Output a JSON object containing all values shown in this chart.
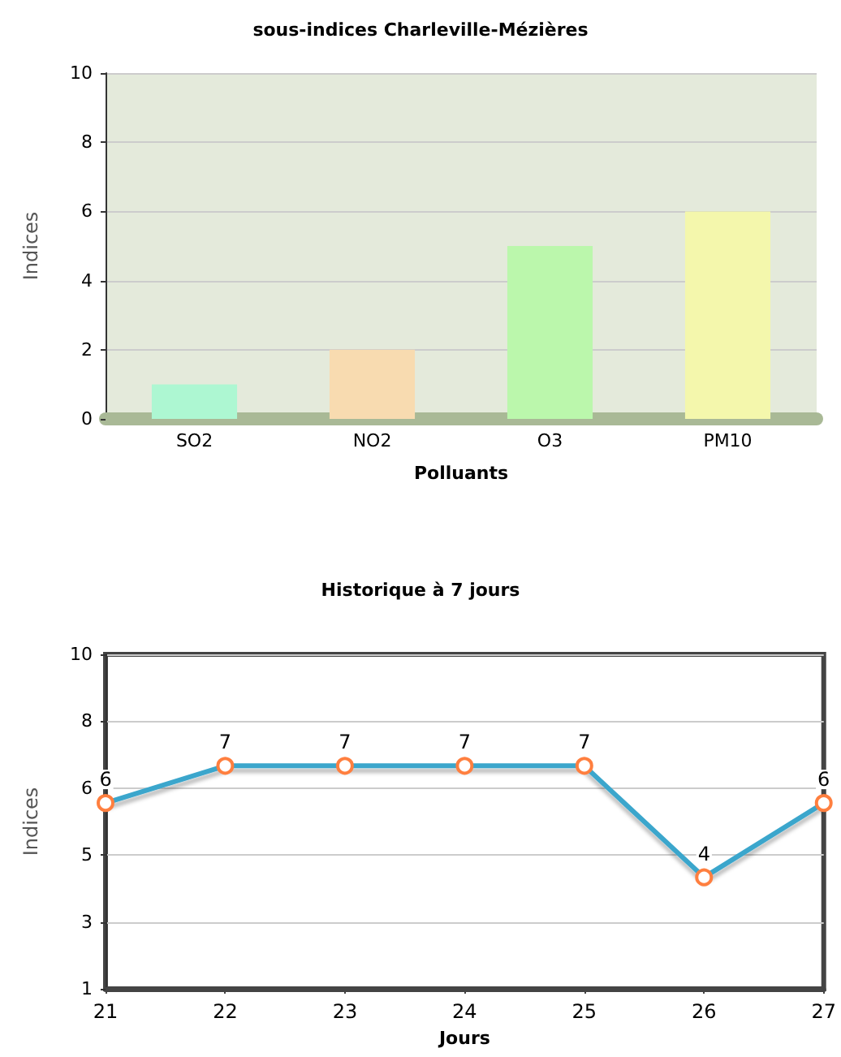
{
  "chart_data": [
    {
      "type": "bar",
      "title": "sous-indices Charleville-Mézières",
      "xlabel": "Polluants",
      "ylabel": "Indices",
      "categories": [
        "SO2",
        "NO2",
        "O3",
        "PM10"
      ],
      "values": [
        1,
        2,
        5,
        6
      ],
      "colors": [
        "#adf7d2",
        "#f8dbb0",
        "#bbf7ac",
        "#f4f7ac"
      ],
      "ylim": [
        0,
        10
      ],
      "yticks": [
        0,
        2,
        4,
        6,
        8,
        10
      ],
      "grid": "y"
    },
    {
      "type": "line",
      "title": "Historique à 7 jours",
      "xlabel": "Jours",
      "ylabel": "Indices",
      "x": [
        21,
        22,
        23,
        24,
        25,
        26,
        27
      ],
      "series": [
        {
          "color": "#3aa6cc",
          "values": [
            6,
            7,
            7,
            7,
            7,
            4,
            6
          ]
        }
      ],
      "xlim": [
        21,
        27
      ],
      "xticks": [
        21,
        22,
        23,
        24,
        25,
        26,
        27
      ],
      "ylim": [
        1,
        10
      ],
      "yticks": [
        1,
        {
          "value": 2.8,
          "label": "3"
        },
        {
          "value": 4.6,
          "label": "5"
        },
        {
          "value": 6.4,
          "label": "6"
        },
        {
          "value": 8.2,
          "label": "8"
        },
        10
      ],
      "grid": "y",
      "marker": "circle",
      "line_style": "solid",
      "data_labels": true
    }
  ]
}
